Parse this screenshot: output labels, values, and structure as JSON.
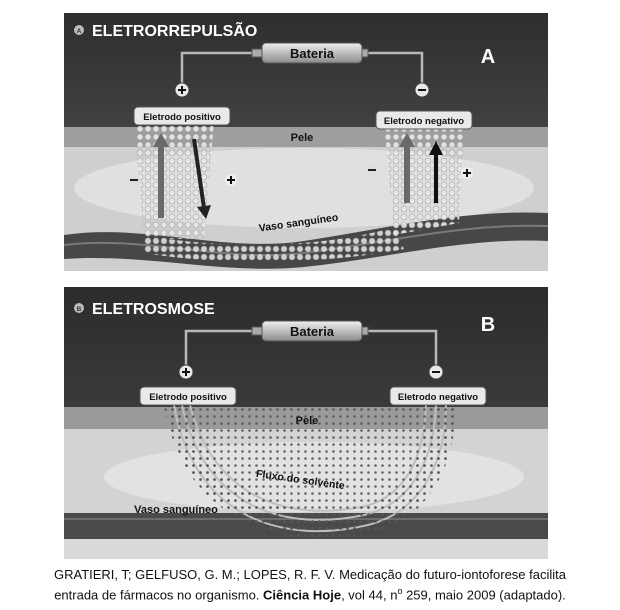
{
  "panels": [
    {
      "badge": "A",
      "title": "ELETRORREPULSÃO",
      "letter": "A",
      "battery": "Bateria",
      "electrode_positive": "Eletrodo positivo",
      "electrode_negative": "Eletrodo negativo",
      "skin": "Pele",
      "vessel": "Vaso sanguíneo"
    },
    {
      "badge": "B",
      "title": "ELETROSMOSE",
      "letter": "B",
      "battery": "Bateria",
      "electrode_positive": "Eletrodo positivo",
      "electrode_negative": "Eletrodo negativo",
      "skin": "Pele",
      "flow": "Fluxo do solvente",
      "vessel": "Vaso sanguíneo"
    }
  ],
  "caption": {
    "line1": "GRATIERI, T; GELFUSO, G. M.; LOPES, R. F. V. Medicação do futuro-iontoforese facilita",
    "line2_pre": "entrada de fármacos no organismo. ",
    "journal": "Ciência Hoje",
    "line2_mid": ", vol 44, n",
    "superscript": "o",
    "line2_post": " 259, maio 2009 (adaptado)."
  },
  "colors": {
    "panel_dark": "#3a3a3a",
    "skin_band": "#9a9a9a",
    "tissue": "#d2d2d2",
    "vessel": "#454545",
    "battery": "#cfcfcf"
  },
  "icons": [
    "plus-icon",
    "minus-icon",
    "arrow-up-icon",
    "arrow-down-icon"
  ]
}
